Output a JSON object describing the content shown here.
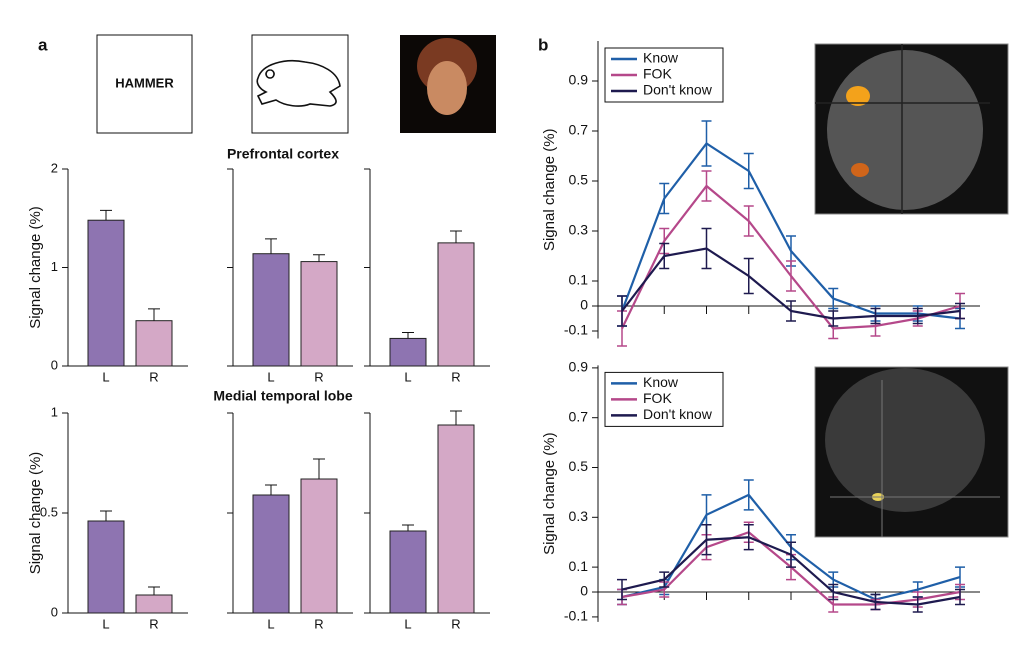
{
  "panels": {
    "a": "a",
    "b": "b",
    "stimulus_word": "HAMMER",
    "sections": [
      "Prefrontal cortex",
      "Medial temporal lobe"
    ]
  },
  "chart_data": [
    {
      "type": "bar",
      "y_label": "Signal change (%)",
      "categories": [
        "L",
        "R"
      ],
      "values": [
        1.48,
        0.46
      ],
      "errors": [
        0.1,
        0.12
      ],
      "colors": [
        "#8e74b1",
        "#d4a8c6"
      ],
      "ylim": [
        0,
        2
      ],
      "yticks": [
        0,
        1,
        2
      ]
    },
    {
      "type": "bar",
      "categories": [
        "L",
        "R"
      ],
      "values": [
        1.14,
        1.06
      ],
      "errors": [
        0.15,
        0.07
      ],
      "colors": [
        "#8e74b1",
        "#d4a8c6"
      ],
      "ylim": [
        0,
        2
      ],
      "yticks": [
        0,
        1,
        2
      ]
    },
    {
      "type": "bar",
      "categories": [
        "L",
        "R"
      ],
      "values": [
        0.28,
        1.25
      ],
      "errors": [
        0.06,
        0.12
      ],
      "colors": [
        "#8e74b1",
        "#d4a8c6"
      ],
      "ylim": [
        0,
        2
      ],
      "yticks": [
        0,
        1,
        2
      ]
    },
    {
      "type": "bar",
      "y_label": "Signal change (%)",
      "categories": [
        "L",
        "R"
      ],
      "values": [
        0.46,
        0.09
      ],
      "errors": [
        0.05,
        0.04
      ],
      "colors": [
        "#8e74b1",
        "#d4a8c6"
      ],
      "ylim": [
        0,
        1
      ],
      "yticks": [
        0,
        0.5,
        1
      ]
    },
    {
      "type": "bar",
      "categories": [
        "L",
        "R"
      ],
      "values": [
        0.59,
        0.67
      ],
      "errors": [
        0.05,
        0.1
      ],
      "colors": [
        "#8e74b1",
        "#d4a8c6"
      ],
      "ylim": [
        0,
        1
      ],
      "yticks": [
        0,
        0.5,
        1
      ]
    },
    {
      "type": "bar",
      "categories": [
        "L",
        "R"
      ],
      "values": [
        0.41,
        0.94
      ],
      "errors": [
        0.03,
        0.07
      ],
      "colors": [
        "#8e74b1",
        "#d4a8c6"
      ],
      "ylim": [
        0,
        1
      ],
      "yticks": [
        0,
        0.5,
        1
      ]
    },
    {
      "type": "line",
      "y_label": "Signal change (%)",
      "categories": [
        null,
        null,
        null,
        null,
        null,
        null,
        null,
        null,
        null
      ],
      "ylim": [
        -0.13,
        1.06
      ],
      "yticks": [
        -0.1,
        0,
        0.1,
        0.3,
        0.5,
        0.7,
        0.9
      ],
      "legend": "top-left",
      "series": [
        {
          "name": "Know",
          "color": "#1f5fa8",
          "values": [
            -0.02,
            0.43,
            0.65,
            0.54,
            0.22,
            0.03,
            -0.03,
            -0.03,
            -0.05
          ],
          "errors": [
            0.06,
            0.06,
            0.09,
            0.07,
            0.06,
            0.04,
            0.03,
            0.03,
            0.04
          ]
        },
        {
          "name": "FOK",
          "color": "#b5488a",
          "values": [
            -0.09,
            0.26,
            0.48,
            0.34,
            0.12,
            -0.09,
            -0.08,
            -0.05,
            0.0
          ],
          "errors": [
            0.07,
            0.05,
            0.06,
            0.06,
            0.06,
            0.04,
            0.04,
            0.03,
            0.05
          ]
        },
        {
          "name": "Don't know",
          "color": "#1e1a4f",
          "values": [
            -0.02,
            0.2,
            0.23,
            0.12,
            -0.02,
            -0.05,
            -0.04,
            -0.04,
            -0.02
          ],
          "errors": [
            0.06,
            0.05,
            0.08,
            0.07,
            0.04,
            0.03,
            0.03,
            0.03,
            0.03
          ]
        }
      ]
    },
    {
      "type": "line",
      "y_label": "Signal change (%)",
      "categories": [
        null,
        null,
        null,
        null,
        null,
        null,
        null,
        null,
        null
      ],
      "ylim": [
        -0.12,
        0.91
      ],
      "yticks": [
        -0.1,
        0,
        0.1,
        0.3,
        0.5,
        0.7,
        0.9
      ],
      "legend": "top-left",
      "series": [
        {
          "name": "Know",
          "color": "#1f5fa8",
          "values": [
            -0.02,
            0.02,
            0.31,
            0.39,
            0.18,
            0.05,
            -0.03,
            0.01,
            0.06
          ],
          "errors": [
            0.03,
            0.03,
            0.08,
            0.06,
            0.05,
            0.03,
            0.02,
            0.03,
            0.04
          ]
        },
        {
          "name": "FOK",
          "color": "#b5488a",
          "values": [
            -0.02,
            0.01,
            0.18,
            0.24,
            0.1,
            -0.05,
            -0.05,
            -0.03,
            0.0
          ],
          "errors": [
            0.03,
            0.03,
            0.05,
            0.04,
            0.05,
            0.03,
            0.02,
            0.03,
            0.03
          ]
        },
        {
          "name": "Don't know",
          "color": "#1e1a4f",
          "values": [
            0.01,
            0.05,
            0.21,
            0.22,
            0.15,
            0.0,
            -0.04,
            -0.05,
            -0.02
          ],
          "errors": [
            0.04,
            0.03,
            0.06,
            0.05,
            0.05,
            0.03,
            0.03,
            0.03,
            0.03
          ]
        }
      ]
    }
  ]
}
